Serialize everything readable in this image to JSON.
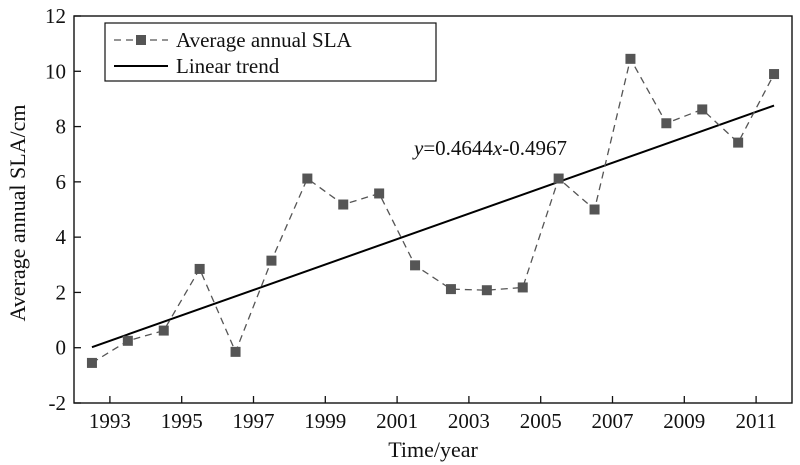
{
  "chart_data": {
    "type": "line",
    "x": [
      1992.5,
      1993.5,
      1994.5,
      1995.5,
      1996.5,
      1997.5,
      1998.5,
      1999.5,
      2000.5,
      2001.5,
      2002.5,
      2003.5,
      2004.5,
      2005.5,
      2006.5,
      2007.5,
      2008.5,
      2009.5,
      2010.5,
      2011.5
    ],
    "series": [
      {
        "name": "Average annual SLA",
        "style": "dashed-square-marker",
        "color": "#555555",
        "values": [
          -0.55,
          0.25,
          0.62,
          2.85,
          -0.15,
          3.15,
          6.12,
          5.18,
          5.58,
          2.98,
          2.12,
          2.08,
          2.18,
          6.12,
          5.0,
          10.45,
          8.12,
          8.62,
          7.42,
          9.9
        ]
      },
      {
        "name": "Linear trend",
        "style": "solid",
        "color": "#000000",
        "x": [
          1992.5,
          2011.5
        ],
        "values": [
          0.02,
          8.76
        ]
      }
    ],
    "annotation": {
      "prefix": "y",
      "mid": "=0.4644",
      "var": "x",
      "suffix": "-0.4967"
    },
    "xlabel": "Time/year",
    "ylabel": "Average annual SLA/cm",
    "xlim": [
      1992,
      2012
    ],
    "ylim": [
      -2,
      12
    ],
    "xticks": [
      1993,
      1995,
      1997,
      1999,
      2001,
      2003,
      2005,
      2007,
      2009,
      2011
    ],
    "yticks": [
      -2,
      0,
      2,
      4,
      6,
      8,
      10,
      12
    ],
    "legend_position": "top-left"
  }
}
